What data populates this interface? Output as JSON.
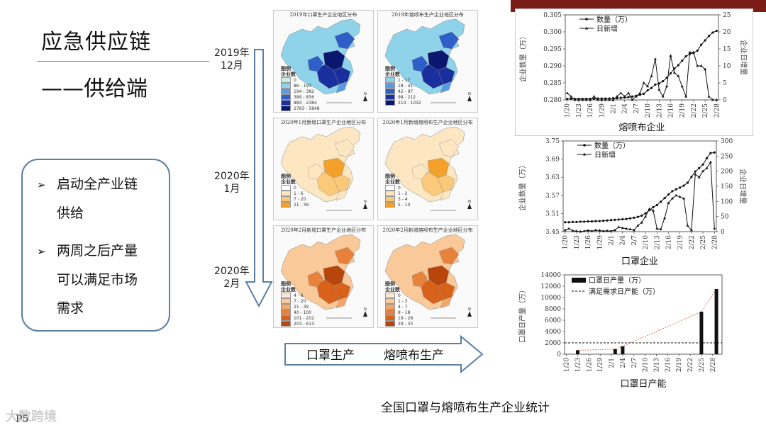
{
  "slide": {
    "title_line1": "应急供应链",
    "title_line2": "——供给端",
    "page_number": "P5",
    "watermark": "大数跨境",
    "caption": "全国口罩与熔喷布生产企业统计"
  },
  "bullets": [
    {
      "lines": [
        "启动全产业链",
        "供给"
      ]
    },
    {
      "lines": [
        "两周之后产量",
        "可以满足市场",
        "需求"
      ]
    }
  ],
  "timeline": [
    {
      "line1": "2019年",
      "line2": "12月"
    },
    {
      "line1": "2020年",
      "line2": "1月"
    },
    {
      "line1": "2020年",
      "line2": "2月"
    }
  ],
  "bottom_arrow": {
    "label_left": "口罩生产",
    "label_right": "熔喷布生产"
  },
  "maps": [
    {
      "title": "2019年口罩生产企业地区分布",
      "legend_title": "图例\n企业数",
      "palette": [
        "#c8f1e6",
        "#8fd3ea",
        "#5a9be0",
        "#2e5fc8",
        "#1a2f9e",
        "#0b1670"
      ],
      "legend": [
        "0",
        "86 - 193",
        "194 - 382",
        "389 - 856",
        "884 - 2384",
        "2783 - 5848"
      ]
    },
    {
      "title": "2019年熔喷布生产企业地区分布",
      "legend_title": "图例\n企业数",
      "palette": [
        "#c8f1e6",
        "#8fd3ea",
        "#5a9be0",
        "#2e5fc8",
        "#1a2f9e",
        "#0b1670"
      ],
      "legend": [
        "1 - 17",
        "18 - 41",
        "42 - 97",
        "98 - 212",
        "213 - 1032"
      ]
    },
    {
      "title": "2020年1月新增口罩生产企业地区分布",
      "legend_title": "图例\n企业数",
      "palette": [
        "#ffffff",
        "#fde7c2",
        "#fbc97a",
        "#f3a12a"
      ],
      "legend": [
        "0",
        "1 - 6",
        "7 - 20",
        "21 - 39"
      ]
    },
    {
      "title": "2020年1月新增熔喷布生产企业地区分布",
      "legend_title": "图例\n企业数",
      "palette": [
        "#ffffff",
        "#fde7c2",
        "#fbc97a",
        "#f3a12a"
      ],
      "legend": [
        "0",
        "1 - 2",
        "3 - 4",
        "5 - 10"
      ]
    },
    {
      "title": "2020年2月新增口罩生产企业地区分布",
      "legend_title": "图例\n企业数",
      "palette": [
        "#fde7cf",
        "#f9c99a",
        "#f3a56a",
        "#e8823a",
        "#d9621b",
        "#b8450c"
      ],
      "legend": [
        "4 - 6",
        "7 - 20",
        "21 - 39",
        "40 - 100",
        "101 - 202",
        "203 - 613"
      ]
    },
    {
      "title": "2020年2月新增熔喷布生产企业地区分布",
      "legend_title": "图例\n企业数",
      "palette": [
        "#fde7cf",
        "#f9c99a",
        "#f3a56a",
        "#e8823a",
        "#d9621b",
        "#b8450c"
      ],
      "legend": [
        "0",
        "1 - 3",
        "4 - 7",
        "8 - 18",
        "19 - 28",
        "29 - 33"
      ]
    }
  ],
  "chart_data": [
    {
      "type": "line",
      "xlabel": "熔喷布企业",
      "ylabel_left": "企业数量（万）",
      "ylabel_right": "企业日增量",
      "ylim_left": [
        0.28,
        0.305
      ],
      "yticks_left": [
        "0.280",
        "0.285",
        "0.290",
        "0.295",
        "0.300",
        "0.305"
      ],
      "ylim_right": [
        0,
        25
      ],
      "yticks_right": [
        "0",
        "5",
        "10",
        "15",
        "20",
        "25"
      ],
      "xticks": [
        "1/20",
        "1/23",
        "1/26",
        "1/29",
        "2/1",
        "2/4",
        "2/7",
        "2/10",
        "2/13",
        "2/16",
        "2/19",
        "2/22",
        "2/25",
        "2/28"
      ],
      "legend": [
        "数量（万）",
        "日新增"
      ],
      "series": [
        {
          "name": "数量（万）",
          "axis": "left",
          "values": [
            0.2803,
            0.2803,
            0.2803,
            0.2803,
            0.2803,
            0.2803,
            0.2803,
            0.2803,
            0.2804,
            0.2804,
            0.2804,
            0.2804,
            0.2805,
            0.2805,
            0.2806,
            0.2807,
            0.2808,
            0.281,
            0.2812,
            0.2815,
            0.2818,
            0.2828,
            0.2835,
            0.2845,
            0.2848,
            0.2855,
            0.2865,
            0.2878,
            0.2892,
            0.2902,
            0.2915,
            0.2928,
            0.2935,
            0.2938,
            0.2945,
            0.2962,
            0.2975,
            0.2988,
            0.2998,
            0.3003
          ]
        },
        {
          "name": "日新增",
          "axis": "right",
          "values": [
            2,
            1,
            0,
            0,
            0,
            0,
            0,
            1,
            0,
            0,
            0,
            0,
            0,
            1,
            2,
            1,
            2,
            0,
            1,
            2,
            5,
            4,
            7,
            12,
            3,
            1,
            4,
            13,
            8,
            7,
            4,
            1,
            14,
            14,
            10,
            10,
            9,
            1,
            0,
            0
          ]
        }
      ]
    },
    {
      "type": "line",
      "xlabel": "口罩企业",
      "ylabel_left": "企业数量（万）",
      "ylabel_right": "企业日增量",
      "ylim_left": [
        3.45,
        3.75
      ],
      "yticks_left": [
        "3.45",
        "3.51",
        "3.57",
        "3.63",
        "3.69",
        "3.75"
      ],
      "ylim_right": [
        0,
        300
      ],
      "yticks_right": [
        "0",
        "50",
        "100",
        "150",
        "200",
        "250",
        "300"
      ],
      "xticks": [
        "1/20",
        "1/23",
        "1/26",
        "1/29",
        "2/1",
        "2/4",
        "2/7",
        "2/10",
        "2/13",
        "2/16",
        "2/19",
        "2/22",
        "2/25",
        "2/28"
      ],
      "legend": [
        "数量（万）",
        "日新增"
      ],
      "series": [
        {
          "name": "数量（万）",
          "axis": "left",
          "values": [
            3.481,
            3.481,
            3.482,
            3.482,
            3.483,
            3.483,
            3.484,
            3.484,
            3.485,
            3.485,
            3.486,
            3.487,
            3.488,
            3.489,
            3.49,
            3.491,
            3.492,
            3.494,
            3.496,
            3.499,
            3.503,
            3.511,
            3.521,
            3.531,
            3.538,
            3.549,
            3.561,
            3.573,
            3.584,
            3.59,
            3.596,
            3.602,
            3.612,
            3.631,
            3.649,
            3.66,
            3.672,
            3.693,
            3.71,
            3.712
          ]
        },
        {
          "name": "日新增",
          "axis": "right",
          "values": [
            5,
            10,
            3,
            2,
            0,
            2,
            4,
            2,
            5,
            4,
            2,
            3,
            2,
            5,
            15,
            12,
            10,
            8,
            5,
            20,
            30,
            50,
            75,
            70,
            10,
            8,
            45,
            95,
            110,
            120,
            115,
            110,
            20,
            5,
            190,
            180,
            200,
            210,
            230,
            10
          ]
        }
      ]
    },
    {
      "type": "bar",
      "xlabel": "口罩日产能",
      "ylabel": "口罩日产量（万）",
      "ylim": [
        0,
        14000
      ],
      "yticks": [
        "0",
        "2000",
        "4000",
        "6000",
        "8000",
        "10000",
        "12000",
        "14000"
      ],
      "xticks": [
        "1/20",
        "1/23",
        "1/26",
        "1/29",
        "2/1",
        "2/4",
        "2/7",
        "2/10",
        "2/13",
        "2/16",
        "2/19",
        "2/22",
        "2/25",
        "2/28"
      ],
      "legend": [
        "口罩日产量（万）",
        "满足需求日产能（万）"
      ],
      "bars": [
        {
          "day_index": 3,
          "value": 700
        },
        {
          "day_index": 13,
          "value": 900
        },
        {
          "day_index": 15,
          "value": 1400
        },
        {
          "day_index": 36,
          "value": 7500
        },
        {
          "day_index": 40,
          "value": 11500
        }
      ],
      "demand_line": 2000,
      "trend_line": [
        [
          3,
          700
        ],
        [
          13,
          900
        ],
        [
          15,
          1400
        ],
        [
          36,
          7500
        ],
        [
          40,
          11500
        ]
      ]
    }
  ]
}
